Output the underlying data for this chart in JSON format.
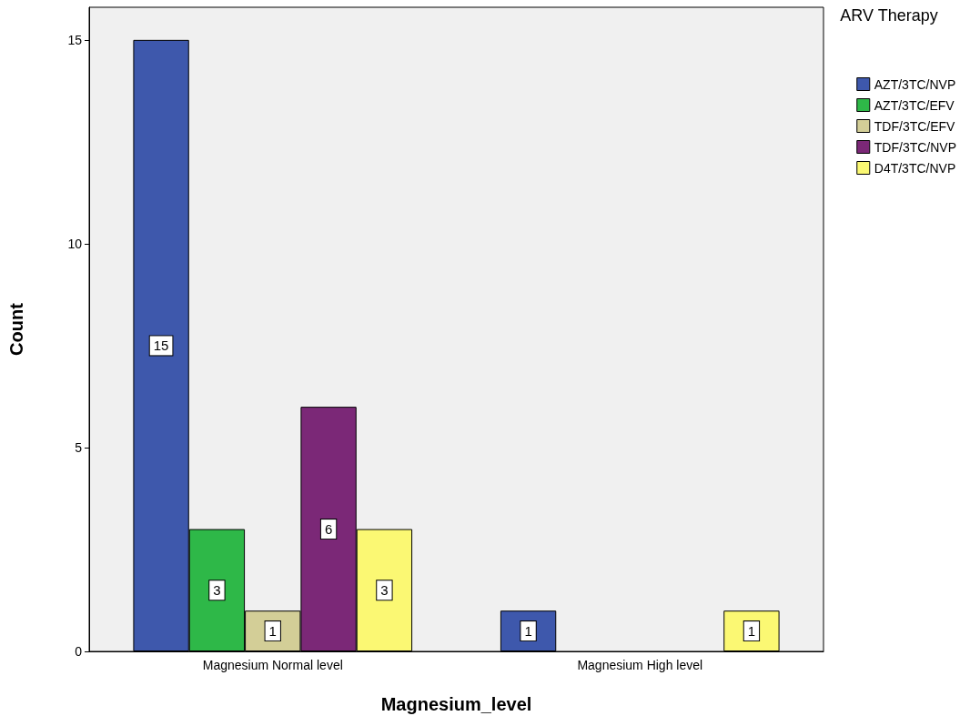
{
  "chart_data": {
    "type": "bar",
    "xlabel": "Magnesium_level",
    "ylabel": "Count",
    "legend_title": "ARV Therapy",
    "categories": [
      "Magnesium Normal level",
      "Magnesium High level"
    ],
    "series": [
      {
        "name": "AZT/3TC/NVP",
        "color": "#3e58ac",
        "values": [
          15,
          1
        ]
      },
      {
        "name": "AZT/3TC/EFV",
        "color": "#2eb848",
        "values": [
          3,
          null
        ]
      },
      {
        "name": "TDF/3TC/EFV",
        "color": "#d3ce97",
        "values": [
          1,
          null
        ]
      },
      {
        "name": "TDF/3TC/NVP",
        "color": "#7b2877",
        "values": [
          6,
          null
        ]
      },
      {
        "name": "D4T/3TC/NVP",
        "color": "#fbf873",
        "values": [
          3,
          1
        ]
      }
    ],
    "ylim": [
      0,
      15.8
    ],
    "yticks": [
      0,
      5,
      10,
      15
    ],
    "grid": false,
    "legend": "right",
    "data_labels": true
  }
}
